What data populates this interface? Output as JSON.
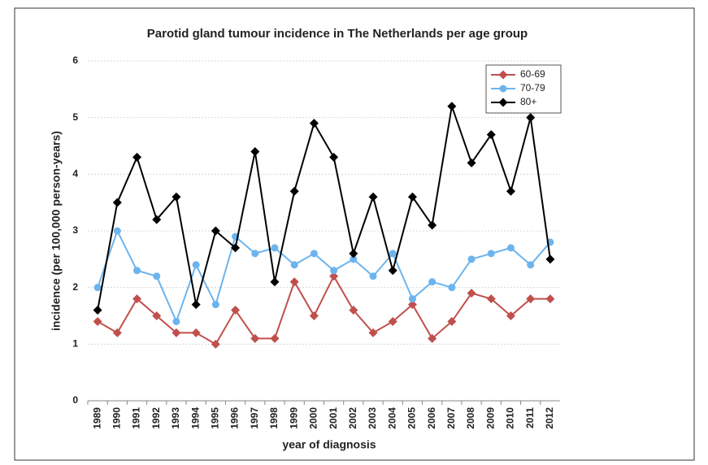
{
  "chart_data": {
    "type": "line",
    "title": "Parotid gland tumour incidence in The Netherlands per age group",
    "xlabel": "year of diagnosis",
    "ylabel": "incidence (per 100,000 person-years)",
    "categories": [
      "1989",
      "1990",
      "1991",
      "1992",
      "1993",
      "1994",
      "1995",
      "1996",
      "1997",
      "1998",
      "1999",
      "2000",
      "2001",
      "2002",
      "2003",
      "2004",
      "2005",
      "2006",
      "2007",
      "2008",
      "2009",
      "2010",
      "2011",
      "2012"
    ],
    "series": [
      {
        "name": "60-69",
        "color": "#c0504d",
        "marker": "diamond",
        "values": [
          1.4,
          1.2,
          1.8,
          1.5,
          1.2,
          1.2,
          1.0,
          1.6,
          1.1,
          1.1,
          2.1,
          1.5,
          2.2,
          1.6,
          1.2,
          1.4,
          1.7,
          1.1,
          1.4,
          1.9,
          1.8,
          1.5,
          1.8,
          1.8
        ]
      },
      {
        "name": "70-79",
        "color": "#6cb4ee",
        "marker": "circle",
        "values": [
          2.0,
          3.0,
          2.3,
          2.2,
          1.4,
          2.4,
          1.7,
          2.9,
          2.6,
          2.7,
          2.4,
          2.6,
          2.3,
          2.5,
          2.2,
          2.6,
          1.8,
          2.1,
          2.0,
          2.5,
          2.6,
          2.7,
          2.4,
          2.8
        ]
      },
      {
        "name": "80+",
        "color": "#000000",
        "marker": "diamond",
        "values": [
          1.6,
          3.5,
          4.3,
          3.2,
          3.6,
          1.7,
          3.0,
          2.7,
          4.4,
          2.1,
          3.7,
          4.9,
          4.3,
          2.6,
          3.6,
          2.3,
          3.6,
          3.1,
          5.2,
          4.2,
          4.7,
          3.7,
          5.0,
          2.5
        ]
      }
    ],
    "ylim": [
      0,
      6
    ],
    "yticks": [
      0,
      1,
      2,
      3,
      4,
      5,
      6
    ],
    "grid": true,
    "legend": "upper right"
  }
}
